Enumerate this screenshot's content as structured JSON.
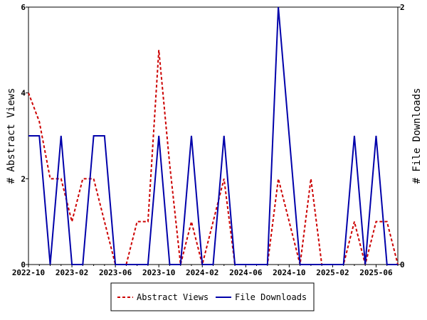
{
  "chart_data": {
    "type": "line",
    "title": "",
    "y_left_label": "# Abstract Views",
    "y_right_label": "# File Downloads",
    "y_left_lim": [
      0,
      6
    ],
    "y_left_ticks": [
      "0",
      "2",
      "4",
      "6"
    ],
    "y_right_lim": [
      0,
      2
    ],
    "y_right_ticks": [
      "0",
      "2"
    ],
    "x_tick_labels": [
      "2022-10",
      "2023-02",
      "2023-06",
      "2023-10",
      "2024-02",
      "2024-06",
      "2024-10",
      "2025-02",
      "2025-06"
    ],
    "x": [
      "2022-10",
      "2022-11",
      "2022-12",
      "2023-01",
      "2023-02",
      "2023-03",
      "2023-04",
      "2023-05",
      "2023-06",
      "2023-07",
      "2023-08",
      "2023-09",
      "2023-10",
      "2023-11",
      "2023-12",
      "2024-01",
      "2024-02",
      "2024-03",
      "2024-04",
      "2024-05",
      "2024-06",
      "2024-07",
      "2024-08",
      "2024-09",
      "2024-10",
      "2024-11",
      "2024-12",
      "2025-01",
      "2025-02",
      "2025-03",
      "2025-04",
      "2025-05",
      "2025-06",
      "2025-07",
      "2025-08"
    ],
    "series": [
      {
        "name": "Abstract Views",
        "axis": "left",
        "color": "#cc0000",
        "dash": "dashed",
        "values": [
          4,
          3.33,
          2,
          2,
          1,
          2,
          2,
          1,
          0,
          0,
          1,
          1,
          5,
          2.33,
          0,
          1,
          0,
          1,
          2,
          0,
          0,
          0,
          0,
          2,
          1,
          0,
          2,
          0,
          0,
          0,
          1,
          0,
          1,
          1,
          0
        ]
      },
      {
        "name": "File Downloads",
        "axis": "right",
        "color": "#0000aa",
        "dash": "solid",
        "values": [
          1,
          1,
          0,
          1,
          0,
          0,
          1,
          1,
          0,
          0,
          0,
          0,
          1,
          0,
          0,
          1,
          0,
          0,
          1,
          0,
          0,
          0,
          0,
          2,
          1,
          0,
          0,
          0,
          0,
          0,
          1,
          0,
          1,
          0,
          0
        ]
      }
    ],
    "legend_position": "bottom-center",
    "grid": false
  }
}
